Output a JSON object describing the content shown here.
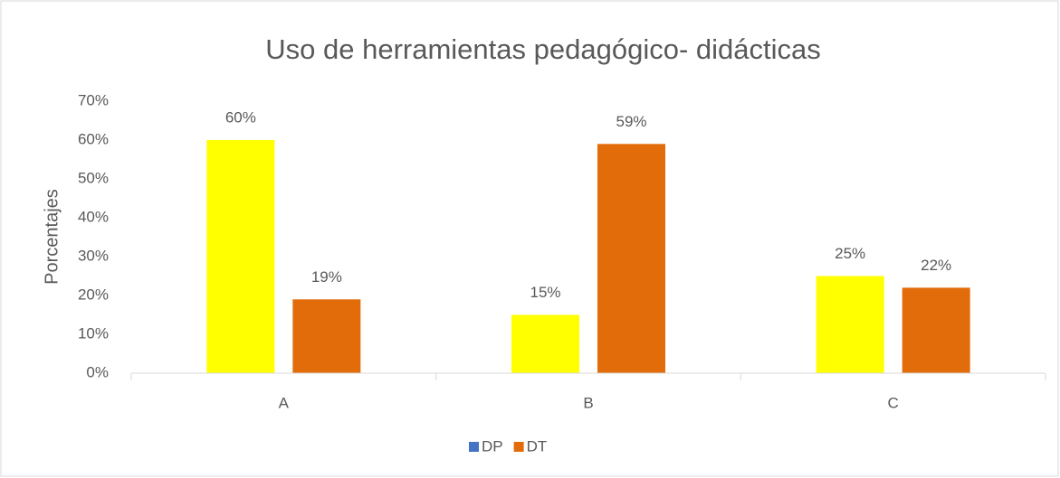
{
  "chart_data": {
    "type": "bar",
    "title": "Uso de herramientas pedagógico- didácticas",
    "y_label": "Porcentajes",
    "categories": [
      "A",
      "B",
      "C"
    ],
    "series": [
      {
        "name": "DP",
        "color": "#ffff00",
        "legend_color": "#4472c4",
        "values": [
          60,
          15,
          25
        ],
        "value_labels": [
          "60%",
          "15%",
          "25%"
        ]
      },
      {
        "name": "DT",
        "color": "#e36c0a",
        "legend_color": "#e36c0a",
        "values": [
          19,
          59,
          22
        ],
        "value_labels": [
          "19%",
          "59%",
          "22%"
        ]
      }
    ],
    "ylim": [
      0,
      70
    ],
    "yticks": [
      {
        "value": 0,
        "label": "0%"
      },
      {
        "value": 10,
        "label": "10%"
      },
      {
        "value": 20,
        "label": "20%"
      },
      {
        "value": 30,
        "label": "30%"
      },
      {
        "value": 40,
        "label": "40%"
      },
      {
        "value": 50,
        "label": "50%"
      },
      {
        "value": 60,
        "label": "60%"
      },
      {
        "value": 70,
        "label": "70%"
      }
    ],
    "grid": false,
    "legend": "bottom"
  }
}
